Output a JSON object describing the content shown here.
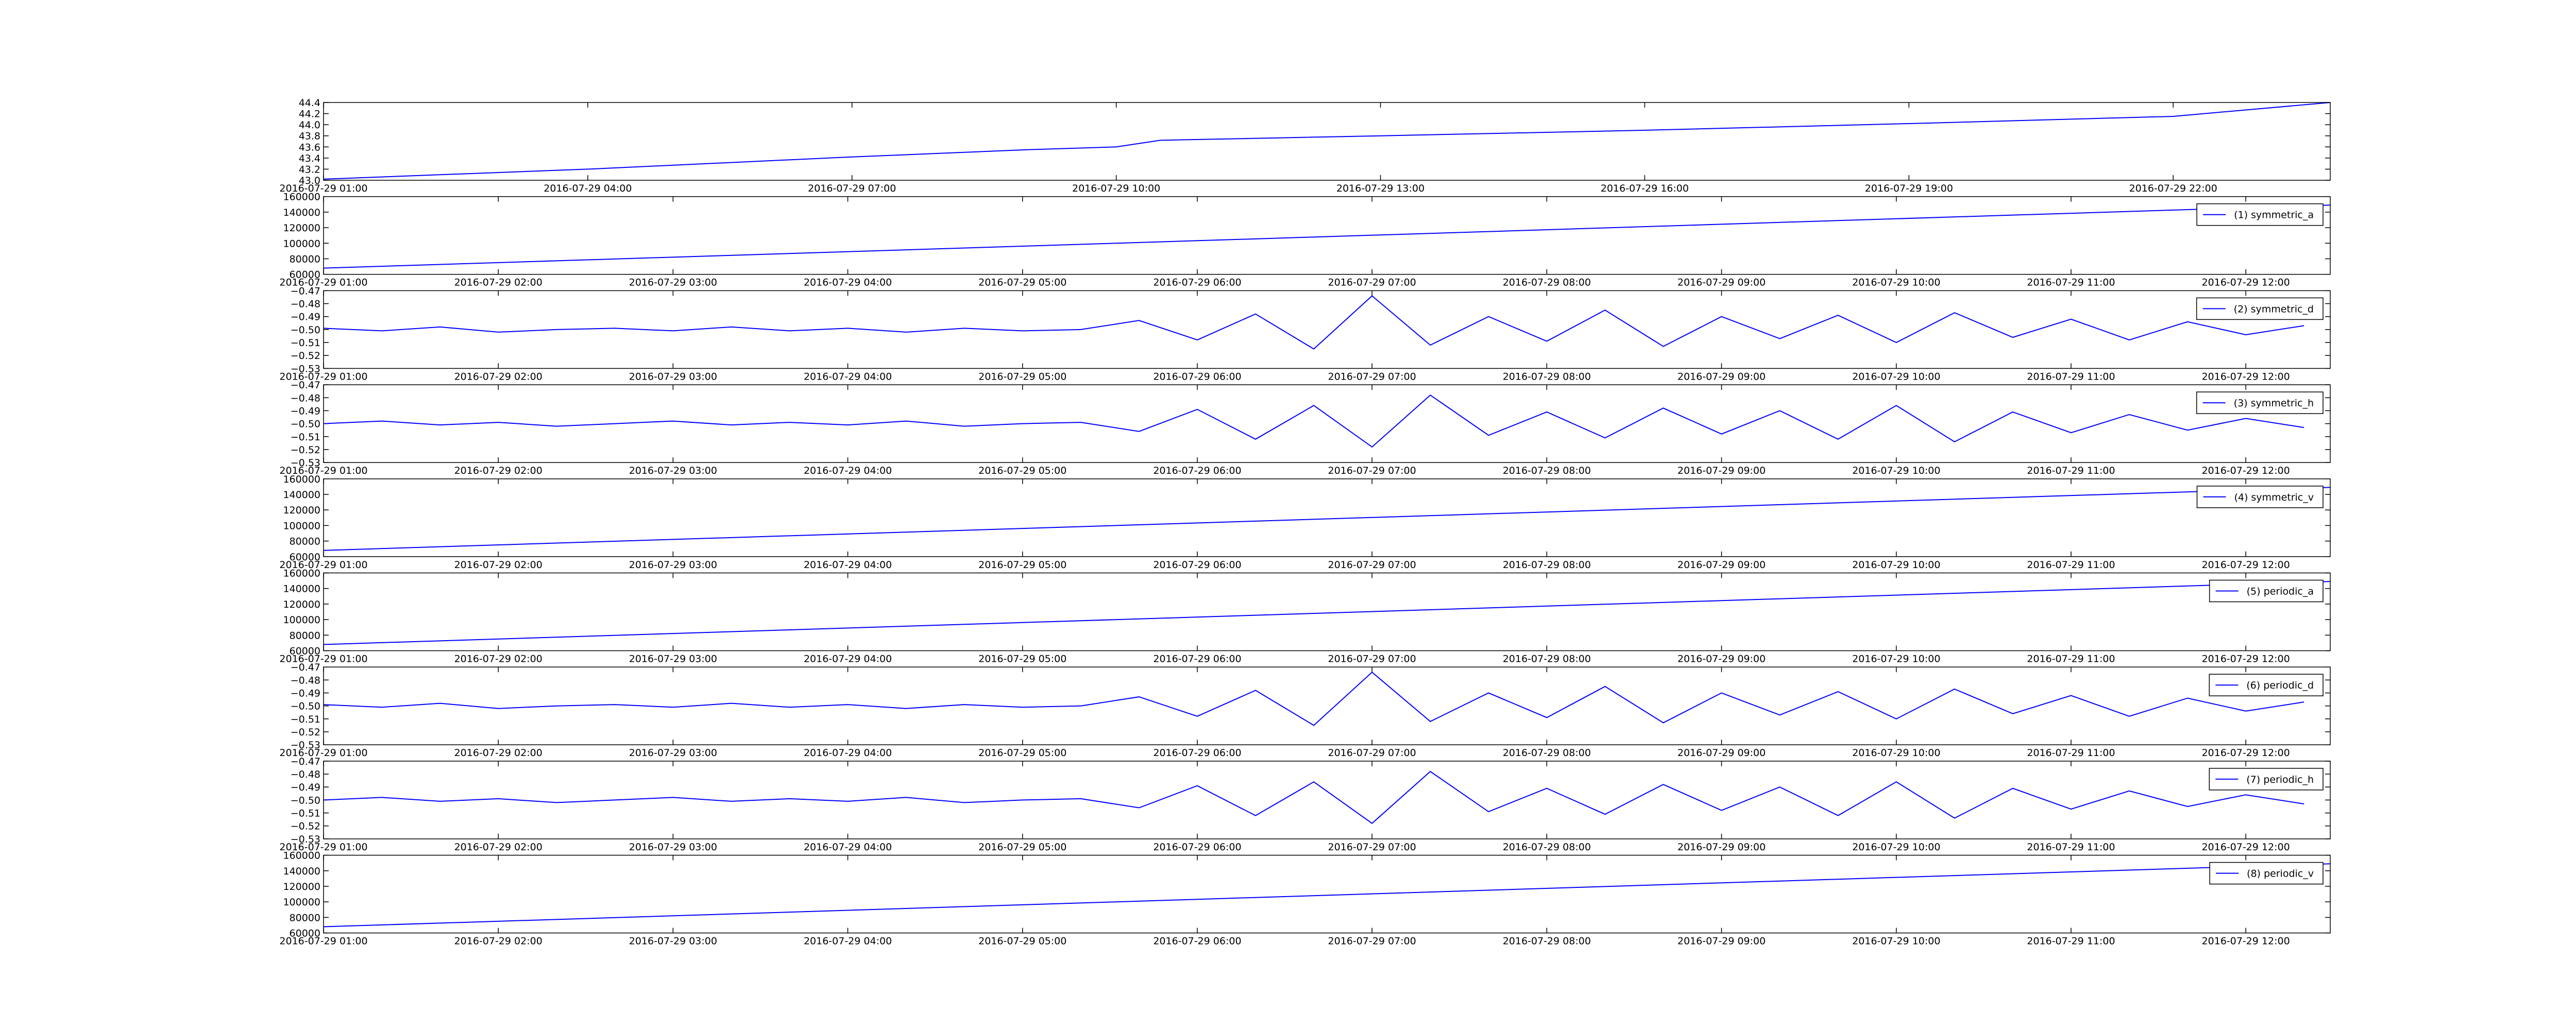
{
  "chart_data": [
    {
      "type": "line",
      "color": "#0000ff",
      "x": [
        "2016-07-29 01:00",
        "2016-07-29 04:00",
        "2016-07-29 07:00",
        "2016-07-29 09:00",
        "2016-07-29 10:00",
        "2016-07-29 10:30",
        "2016-07-29 13:00",
        "2016-07-29 16:00",
        "2016-07-29 19:00",
        "2016-07-29 22:00",
        "2016-07-29 23:47"
      ],
      "values": [
        43.02,
        43.2,
        43.42,
        43.55,
        43.6,
        43.72,
        43.8,
        43.9,
        44.02,
        44.15,
        44.4
      ],
      "xlim": [
        "2016-07-29 01:00",
        "2016-07-29 23:47"
      ],
      "ylim": [
        43.0,
        44.4
      ],
      "xticks": [
        "2016-07-29 01:00",
        "2016-07-29 04:00",
        "2016-07-29 07:00",
        "2016-07-29 10:00",
        "2016-07-29 13:00",
        "2016-07-29 16:00",
        "2016-07-29 19:00",
        "2016-07-29 22:00"
      ],
      "yticks": [
        {
          "value": 43.0,
          "label": "43.0"
        },
        43.2,
        43.4,
        43.6,
        43.8,
        {
          "value": 44.0,
          "label": "44.0"
        },
        44.2,
        44.4
      ]
    },
    {
      "type": "line",
      "legend": "upper right",
      "x": [
        "2016-07-29 01:00",
        "2016-07-29 12:29"
      ],
      "series": [
        {
          "name": "(1) symmetric_a",
          "color": "#0000ff",
          "values": [
            68000,
            149000
          ]
        }
      ],
      "xlim": [
        "2016-07-29 01:00",
        "2016-07-29 12:29"
      ],
      "ylim": [
        60000,
        160000
      ],
      "xticks": [
        "2016-07-29 01:00",
        "2016-07-29 02:00",
        "2016-07-29 03:00",
        "2016-07-29 04:00",
        "2016-07-29 05:00",
        "2016-07-29 06:00",
        "2016-07-29 07:00",
        "2016-07-29 08:00",
        "2016-07-29 09:00",
        "2016-07-29 10:00",
        "2016-07-29 11:00",
        "2016-07-29 12:00"
      ],
      "yticks": [
        60000,
        80000,
        100000,
        120000,
        140000,
        160000
      ]
    },
    {
      "type": "line",
      "legend": "upper right",
      "x": [
        "2016-07-29 01:00",
        "2016-07-29 01:20",
        "2016-07-29 01:40",
        "2016-07-29 02:00",
        "2016-07-29 02:20",
        "2016-07-29 02:40",
        "2016-07-29 03:00",
        "2016-07-29 03:20",
        "2016-07-29 03:40",
        "2016-07-29 04:00",
        "2016-07-29 04:20",
        "2016-07-29 04:40",
        "2016-07-29 05:00",
        "2016-07-29 05:20",
        "2016-07-29 05:40",
        "2016-07-29 06:00",
        "2016-07-29 06:20",
        "2016-07-29 06:40",
        "2016-07-29 07:00",
        "2016-07-29 07:20",
        "2016-07-29 07:40",
        "2016-07-29 08:00",
        "2016-07-29 08:20",
        "2016-07-29 08:40",
        "2016-07-29 09:00",
        "2016-07-29 09:20",
        "2016-07-29 09:40",
        "2016-07-29 10:00",
        "2016-07-29 10:20",
        "2016-07-29 10:40",
        "2016-07-29 11:00",
        "2016-07-29 11:20",
        "2016-07-29 11:40",
        "2016-07-29 12:00",
        "2016-07-29 12:20"
      ],
      "series": [
        {
          "name": "(2) symmetric_d",
          "color": "#0000ff",
          "values": [
            -0.499,
            -0.501,
            -0.498,
            -0.502,
            -0.5,
            -0.499,
            -0.501,
            -0.498,
            -0.501,
            -0.499,
            -0.502,
            -0.499,
            -0.501,
            -0.5,
            -0.493,
            -0.508,
            -0.488,
            -0.515,
            -0.474,
            -0.512,
            -0.49,
            -0.509,
            -0.485,
            -0.513,
            -0.49,
            -0.507,
            -0.489,
            -0.51,
            -0.487,
            -0.506,
            -0.492,
            -0.508,
            -0.494,
            -0.504,
            -0.497
          ]
        }
      ],
      "xlim": [
        "2016-07-29 01:00",
        "2016-07-29 12:29"
      ],
      "ylim": [
        -0.53,
        -0.47
      ],
      "xticks": [
        "2016-07-29 01:00",
        "2016-07-29 02:00",
        "2016-07-29 03:00",
        "2016-07-29 04:00",
        "2016-07-29 05:00",
        "2016-07-29 06:00",
        "2016-07-29 07:00",
        "2016-07-29 08:00",
        "2016-07-29 09:00",
        "2016-07-29 10:00",
        "2016-07-29 11:00",
        "2016-07-29 12:00"
      ],
      "yticks": [
        {
          "value": -0.53,
          "label": "−0.53"
        },
        {
          "value": -0.52,
          "label": "−0.52"
        },
        {
          "value": -0.51,
          "label": "−0.51"
        },
        {
          "value": -0.5,
          "label": "−0.50"
        },
        {
          "value": -0.49,
          "label": "−0.49"
        },
        {
          "value": -0.48,
          "label": "−0.48"
        },
        {
          "value": -0.47,
          "label": "−0.47"
        }
      ]
    },
    {
      "type": "line",
      "legend": "upper right",
      "x": [
        "2016-07-29 01:00",
        "2016-07-29 01:20",
        "2016-07-29 01:40",
        "2016-07-29 02:00",
        "2016-07-29 02:20",
        "2016-07-29 02:40",
        "2016-07-29 03:00",
        "2016-07-29 03:20",
        "2016-07-29 03:40",
        "2016-07-29 04:00",
        "2016-07-29 04:20",
        "2016-07-29 04:40",
        "2016-07-29 05:00",
        "2016-07-29 05:20",
        "2016-07-29 05:40",
        "2016-07-29 06:00",
        "2016-07-29 06:20",
        "2016-07-29 06:40",
        "2016-07-29 07:00",
        "2016-07-29 07:20",
        "2016-07-29 07:40",
        "2016-07-29 08:00",
        "2016-07-29 08:20",
        "2016-07-29 08:40",
        "2016-07-29 09:00",
        "2016-07-29 09:20",
        "2016-07-29 09:40",
        "2016-07-29 10:00",
        "2016-07-29 10:20",
        "2016-07-29 10:40",
        "2016-07-29 11:00",
        "2016-07-29 11:20",
        "2016-07-29 11:40",
        "2016-07-29 12:00",
        "2016-07-29 12:20"
      ],
      "series": [
        {
          "name": "(3) symmetric_h",
          "color": "#0000ff",
          "values": [
            -0.5,
            -0.498,
            -0.501,
            -0.499,
            -0.502,
            -0.5,
            -0.498,
            -0.501,
            -0.499,
            -0.501,
            -0.498,
            -0.502,
            -0.5,
            -0.499,
            -0.506,
            -0.489,
            -0.512,
            -0.486,
            -0.518,
            -0.478,
            -0.509,
            -0.491,
            -0.511,
            -0.488,
            -0.508,
            -0.49,
            -0.512,
            -0.486,
            -0.514,
            -0.491,
            -0.507,
            -0.493,
            -0.505,
            -0.496,
            -0.503
          ]
        }
      ],
      "xlim": [
        "2016-07-29 01:00",
        "2016-07-29 12:29"
      ],
      "ylim": [
        -0.53,
        -0.47
      ],
      "xticks": [
        "2016-07-29 01:00",
        "2016-07-29 02:00",
        "2016-07-29 03:00",
        "2016-07-29 04:00",
        "2016-07-29 05:00",
        "2016-07-29 06:00",
        "2016-07-29 07:00",
        "2016-07-29 08:00",
        "2016-07-29 09:00",
        "2016-07-29 10:00",
        "2016-07-29 11:00",
        "2016-07-29 12:00"
      ],
      "yticks": [
        {
          "value": -0.53,
          "label": "−0.53"
        },
        {
          "value": -0.52,
          "label": "−0.52"
        },
        {
          "value": -0.51,
          "label": "−0.51"
        },
        {
          "value": -0.5,
          "label": "−0.50"
        },
        {
          "value": -0.49,
          "label": "−0.49"
        },
        {
          "value": -0.48,
          "label": "−0.48"
        },
        {
          "value": -0.47,
          "label": "−0.47"
        }
      ]
    },
    {
      "type": "line",
      "legend": "upper right",
      "x": [
        "2016-07-29 01:00",
        "2016-07-29 12:29"
      ],
      "series": [
        {
          "name": "(4) symmetric_v",
          "color": "#0000ff",
          "values": [
            68000,
            149000
          ]
        }
      ],
      "xlim": [
        "2016-07-29 01:00",
        "2016-07-29 12:29"
      ],
      "ylim": [
        60000,
        160000
      ],
      "xticks": [
        "2016-07-29 01:00",
        "2016-07-29 02:00",
        "2016-07-29 03:00",
        "2016-07-29 04:00",
        "2016-07-29 05:00",
        "2016-07-29 06:00",
        "2016-07-29 07:00",
        "2016-07-29 08:00",
        "2016-07-29 09:00",
        "2016-07-29 10:00",
        "2016-07-29 11:00",
        "2016-07-29 12:00"
      ],
      "yticks": [
        60000,
        80000,
        100000,
        120000,
        140000,
        160000
      ]
    },
    {
      "type": "line",
      "legend": "upper right",
      "x": [
        "2016-07-29 01:00",
        "2016-07-29 12:29"
      ],
      "series": [
        {
          "name": "(5) periodic_a",
          "color": "#0000ff",
          "values": [
            68000,
            149000
          ]
        }
      ],
      "xlim": [
        "2016-07-29 01:00",
        "2016-07-29 12:29"
      ],
      "ylim": [
        60000,
        160000
      ],
      "xticks": [
        "2016-07-29 01:00",
        "2016-07-29 02:00",
        "2016-07-29 03:00",
        "2016-07-29 04:00",
        "2016-07-29 05:00",
        "2016-07-29 06:00",
        "2016-07-29 07:00",
        "2016-07-29 08:00",
        "2016-07-29 09:00",
        "2016-07-29 10:00",
        "2016-07-29 11:00",
        "2016-07-29 12:00"
      ],
      "yticks": [
        60000,
        80000,
        100000,
        120000,
        140000,
        160000
      ]
    },
    {
      "type": "line",
      "legend": "upper right",
      "x": [
        "2016-07-29 01:00",
        "2016-07-29 01:20",
        "2016-07-29 01:40",
        "2016-07-29 02:00",
        "2016-07-29 02:20",
        "2016-07-29 02:40",
        "2016-07-29 03:00",
        "2016-07-29 03:20",
        "2016-07-29 03:40",
        "2016-07-29 04:00",
        "2016-07-29 04:20",
        "2016-07-29 04:40",
        "2016-07-29 05:00",
        "2016-07-29 05:20",
        "2016-07-29 05:40",
        "2016-07-29 06:00",
        "2016-07-29 06:20",
        "2016-07-29 06:40",
        "2016-07-29 07:00",
        "2016-07-29 07:20",
        "2016-07-29 07:40",
        "2016-07-29 08:00",
        "2016-07-29 08:20",
        "2016-07-29 08:40",
        "2016-07-29 09:00",
        "2016-07-29 09:20",
        "2016-07-29 09:40",
        "2016-07-29 10:00",
        "2016-07-29 10:20",
        "2016-07-29 10:40",
        "2016-07-29 11:00",
        "2016-07-29 11:20",
        "2016-07-29 11:40",
        "2016-07-29 12:00",
        "2016-07-29 12:20"
      ],
      "series": [
        {
          "name": "(6) periodic_d",
          "color": "#0000ff",
          "values": [
            -0.499,
            -0.501,
            -0.498,
            -0.502,
            -0.5,
            -0.499,
            -0.501,
            -0.498,
            -0.501,
            -0.499,
            -0.502,
            -0.499,
            -0.501,
            -0.5,
            -0.493,
            -0.508,
            -0.488,
            -0.515,
            -0.474,
            -0.512,
            -0.49,
            -0.509,
            -0.485,
            -0.513,
            -0.49,
            -0.507,
            -0.489,
            -0.51,
            -0.487,
            -0.506,
            -0.492,
            -0.508,
            -0.494,
            -0.504,
            -0.497
          ]
        }
      ],
      "xlim": [
        "2016-07-29 01:00",
        "2016-07-29 12:29"
      ],
      "ylim": [
        -0.53,
        -0.47
      ],
      "xticks": [
        "2016-07-29 01:00",
        "2016-07-29 02:00",
        "2016-07-29 03:00",
        "2016-07-29 04:00",
        "2016-07-29 05:00",
        "2016-07-29 06:00",
        "2016-07-29 07:00",
        "2016-07-29 08:00",
        "2016-07-29 09:00",
        "2016-07-29 10:00",
        "2016-07-29 11:00",
        "2016-07-29 12:00"
      ],
      "yticks": [
        {
          "value": -0.53,
          "label": "−0.53"
        },
        {
          "value": -0.52,
          "label": "−0.52"
        },
        {
          "value": -0.51,
          "label": "−0.51"
        },
        {
          "value": -0.5,
          "label": "−0.50"
        },
        {
          "value": -0.49,
          "label": "−0.49"
        },
        {
          "value": -0.48,
          "label": "−0.48"
        },
        {
          "value": -0.47,
          "label": "−0.47"
        }
      ]
    },
    {
      "type": "line",
      "legend": "upper right",
      "x": [
        "2016-07-29 01:00",
        "2016-07-29 01:20",
        "2016-07-29 01:40",
        "2016-07-29 02:00",
        "2016-07-29 02:20",
        "2016-07-29 02:40",
        "2016-07-29 03:00",
        "2016-07-29 03:20",
        "2016-07-29 03:40",
        "2016-07-29 04:00",
        "2016-07-29 04:20",
        "2016-07-29 04:40",
        "2016-07-29 05:00",
        "2016-07-29 05:20",
        "2016-07-29 05:40",
        "2016-07-29 06:00",
        "2016-07-29 06:20",
        "2016-07-29 06:40",
        "2016-07-29 07:00",
        "2016-07-29 07:20",
        "2016-07-29 07:40",
        "2016-07-29 08:00",
        "2016-07-29 08:20",
        "2016-07-29 08:40",
        "2016-07-29 09:00",
        "2016-07-29 09:20",
        "2016-07-29 09:40",
        "2016-07-29 10:00",
        "2016-07-29 10:20",
        "2016-07-29 10:40",
        "2016-07-29 11:00",
        "2016-07-29 11:20",
        "2016-07-29 11:40",
        "2016-07-29 12:00",
        "2016-07-29 12:20"
      ],
      "series": [
        {
          "name": "(7) periodic_h",
          "color": "#0000ff",
          "values": [
            -0.5,
            -0.498,
            -0.501,
            -0.499,
            -0.502,
            -0.5,
            -0.498,
            -0.501,
            -0.499,
            -0.501,
            -0.498,
            -0.502,
            -0.5,
            -0.499,
            -0.506,
            -0.489,
            -0.512,
            -0.486,
            -0.518,
            -0.478,
            -0.509,
            -0.491,
            -0.511,
            -0.488,
            -0.508,
            -0.49,
            -0.512,
            -0.486,
            -0.514,
            -0.491,
            -0.507,
            -0.493,
            -0.505,
            -0.496,
            -0.503
          ]
        }
      ],
      "xlim": [
        "2016-07-29 01:00",
        "2016-07-29 12:29"
      ],
      "ylim": [
        -0.53,
        -0.47
      ],
      "xticks": [
        "2016-07-29 01:00",
        "2016-07-29 02:00",
        "2016-07-29 03:00",
        "2016-07-29 04:00",
        "2016-07-29 05:00",
        "2016-07-29 06:00",
        "2016-07-29 07:00",
        "2016-07-29 08:00",
        "2016-07-29 09:00",
        "2016-07-29 10:00",
        "2016-07-29 11:00",
        "2016-07-29 12:00"
      ],
      "yticks": [
        {
          "value": -0.53,
          "label": "−0.53"
        },
        {
          "value": -0.52,
          "label": "−0.52"
        },
        {
          "value": -0.51,
          "label": "−0.51"
        },
        {
          "value": -0.5,
          "label": "−0.50"
        },
        {
          "value": -0.49,
          "label": "−0.49"
        },
        {
          "value": -0.48,
          "label": "−0.48"
        },
        {
          "value": -0.47,
          "label": "−0.47"
        }
      ]
    },
    {
      "type": "line",
      "legend": "upper right",
      "x": [
        "2016-07-29 01:00",
        "2016-07-29 12:29"
      ],
      "series": [
        {
          "name": "(8) periodic_v",
          "color": "#0000ff",
          "values": [
            68000,
            149000
          ]
        }
      ],
      "xlim": [
        "2016-07-29 01:00",
        "2016-07-29 12:29"
      ],
      "ylim": [
        60000,
        160000
      ],
      "xticks": [
        "2016-07-29 01:00",
        "2016-07-29 02:00",
        "2016-07-29 03:00",
        "2016-07-29 04:00",
        "2016-07-29 05:00",
        "2016-07-29 06:00",
        "2016-07-29 07:00",
        "2016-07-29 08:00",
        "2016-07-29 09:00",
        "2016-07-29 10:00",
        "2016-07-29 11:00",
        "2016-07-29 12:00"
      ],
      "yticks": [
        60000,
        80000,
        100000,
        120000,
        140000,
        160000
      ]
    }
  ]
}
